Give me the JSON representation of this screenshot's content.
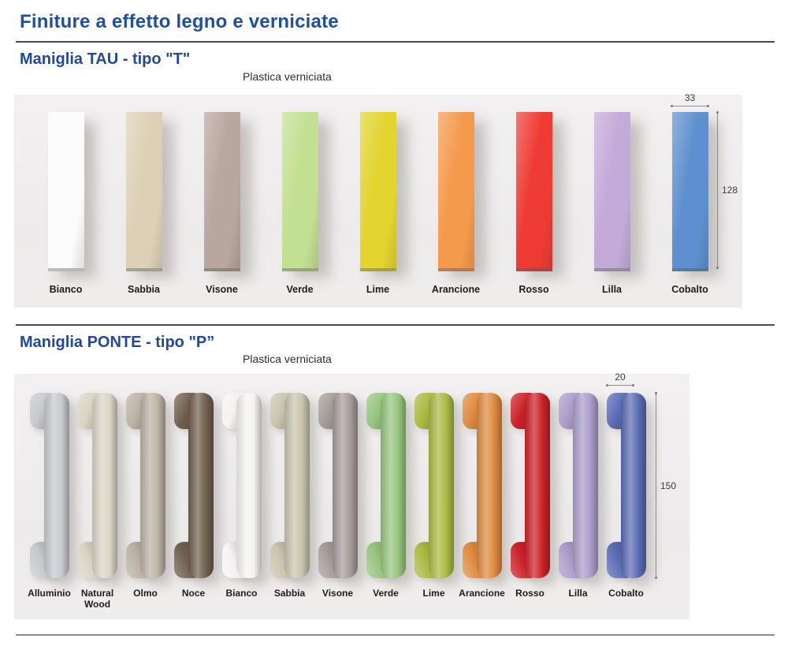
{
  "page": {
    "title": "Finiture a effetto legno e verniciate"
  },
  "sections": [
    {
      "id": "tau",
      "heading": "Maniglia TAU - tipo \"T\"",
      "subtitle": "Plastica verniciata",
      "handle_type": "tau",
      "dimensions": {
        "width": "33",
        "height": "128"
      },
      "swatches": [
        {
          "label": "Bianco",
          "color": "#fbfbfb"
        },
        {
          "label": "Sabbia",
          "color": "#dcd1b6"
        },
        {
          "label": "Visone",
          "color": "#b7a79e"
        },
        {
          "label": "Verde",
          "color": "#c3df92"
        },
        {
          "label": "Lime",
          "color": "#e3d42f"
        },
        {
          "label": "Arancione",
          "color": "#f49a4d"
        },
        {
          "label": "Rosso",
          "color": "#ee3c35"
        },
        {
          "label": "Lilla",
          "color": "#c3abd9"
        },
        {
          "label": "Cobalto",
          "color": "#5e90cf"
        }
      ]
    },
    {
      "id": "ponte",
      "heading": "Maniglia PONTE - tipo \"P”",
      "subtitle": "Plastica verniciata",
      "handle_type": "ponte",
      "dimensions": {
        "width": "20",
        "height": "150"
      },
      "swatches": [
        {
          "label": "Alluminio",
          "color": "#c6c8cc"
        },
        {
          "label": "Natural Wood",
          "color": "#d8d4c5"
        },
        {
          "label": "Olmo",
          "color": "#bcb2a5"
        },
        {
          "label": "Noce",
          "color": "#70604f"
        },
        {
          "label": "Bianco",
          "color": "#f4f3f1"
        },
        {
          "label": "Sabbia",
          "color": "#c9c4af"
        },
        {
          "label": "Visone",
          "color": "#a59c99"
        },
        {
          "label": "Verde",
          "color": "#97c57f"
        },
        {
          "label": "Lime",
          "color": "#a9bb43"
        },
        {
          "label": "Arancione",
          "color": "#de8b40"
        },
        {
          "label": "Rosso",
          "color": "#cc2128"
        },
        {
          "label": "Lilla",
          "color": "#ab9dca"
        },
        {
          "label": "Cobalto",
          "color": "#5a6cb4"
        }
      ]
    }
  ]
}
